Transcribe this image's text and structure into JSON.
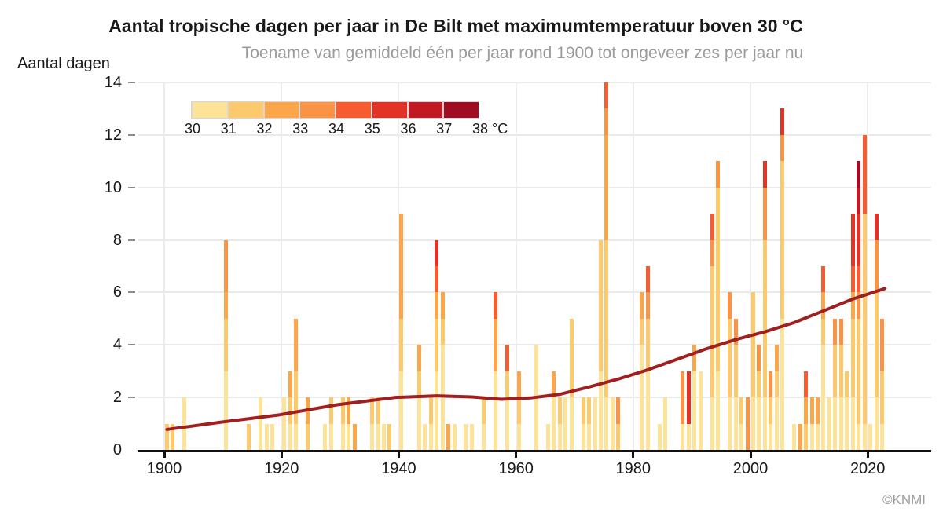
{
  "title": "Aantal tropische dagen per jaar in De Bilt met maximumtemperatuur boven 30 °C",
  "subtitle": "Toename van gemiddeld één per jaar rond 1900 tot ongeveer zes per jaar nu",
  "credit": "©KNMI",
  "y_axis": {
    "label": "Aantal dagen",
    "ticks": [
      0,
      2,
      4,
      6,
      8,
      10,
      12,
      14
    ]
  },
  "x_axis": {
    "ticks": [
      1900,
      1920,
      1940,
      1960,
      1980,
      2000,
      2020
    ]
  },
  "legend": {
    "labels": [
      "30",
      "31",
      "32",
      "33",
      "34",
      "35",
      "36",
      "37",
      "38"
    ],
    "unit": "°C",
    "swatch_colors": [
      "#FDE398",
      "#FDC96D",
      "#FCA64B",
      "#F99345",
      "#F75C30",
      "#E23327",
      "#C11A23",
      "#A00D22"
    ]
  },
  "chart_data": {
    "type": "bar",
    "stacked": true,
    "title": "Aantal tropische dagen per jaar in De Bilt met maximumtemperatuur boven 30 °C",
    "ylabel": "Aantal dagen",
    "ylim": [
      0,
      14
    ],
    "xlim": [
      1896,
      2028
    ],
    "grid": true,
    "temperature_bins": [
      "30-31",
      "31-32",
      "32-33",
      "33-34",
      "34-35",
      "35-36",
      "36-37",
      "37-38"
    ],
    "bin_colors": [
      "#FDE398",
      "#FDC96D",
      "#FCA64B",
      "#F99345",
      "#F75C30",
      "#E23327",
      "#C11A23",
      "#A00D22"
    ],
    "bars": [
      {
        "year": 1901,
        "segments": [
          0,
          1
        ]
      },
      {
        "year": 1902,
        "segments": [
          0,
          1
        ]
      },
      {
        "year": 1904,
        "segments": [
          2
        ]
      },
      {
        "year": 1911,
        "segments": [
          3,
          2,
          1,
          2
        ]
      },
      {
        "year": 1915,
        "segments": [
          0,
          1
        ]
      },
      {
        "year": 1917,
        "segments": [
          2
        ]
      },
      {
        "year": 1918,
        "segments": [
          1
        ]
      },
      {
        "year": 1919,
        "segments": [
          1
        ]
      },
      {
        "year": 1921,
        "segments": [
          2
        ]
      },
      {
        "year": 1922,
        "segments": [
          1,
          1,
          1
        ]
      },
      {
        "year": 1923,
        "segments": [
          1,
          2,
          2
        ]
      },
      {
        "year": 1925,
        "segments": [
          0,
          1,
          1
        ]
      },
      {
        "year": 1928,
        "segments": [
          1
        ]
      },
      {
        "year": 1929,
        "segments": [
          1,
          1
        ]
      },
      {
        "year": 1931,
        "segments": [
          1,
          1
        ]
      },
      {
        "year": 1932,
        "segments": [
          1,
          0,
          1
        ]
      },
      {
        "year": 1933,
        "segments": [
          0,
          0,
          1
        ]
      },
      {
        "year": 1936,
        "segments": [
          1,
          1
        ]
      },
      {
        "year": 1937,
        "segments": [
          1,
          1
        ]
      },
      {
        "year": 1938,
        "segments": [
          1
        ]
      },
      {
        "year": 1939,
        "segments": [
          0,
          1
        ]
      },
      {
        "year": 1941,
        "segments": [
          3,
          2,
          4
        ]
      },
      {
        "year": 1944,
        "segments": [
          2,
          1,
          1
        ]
      },
      {
        "year": 1945,
        "segments": [
          1
        ]
      },
      {
        "year": 1946,
        "segments": [
          1,
          1
        ]
      },
      {
        "year": 1947,
        "segments": [
          3,
          2,
          1,
          0,
          1,
          1
        ]
      },
      {
        "year": 1948,
        "segments": [
          4,
          1,
          1
        ]
      },
      {
        "year": 1949,
        "segments": [
          0,
          0,
          1
        ]
      },
      {
        "year": 1950,
        "segments": [
          1
        ]
      },
      {
        "year": 1952,
        "segments": [
          1
        ]
      },
      {
        "year": 1953,
        "segments": [
          1
        ]
      },
      {
        "year": 1955,
        "segments": [
          1,
          1
        ]
      },
      {
        "year": 1957,
        "segments": [
          3,
          0,
          2,
          0,
          1
        ]
      },
      {
        "year": 1959,
        "segments": [
          2,
          1,
          0,
          0,
          1
        ]
      },
      {
        "year": 1961,
        "segments": [
          1,
          1,
          1
        ]
      },
      {
        "year": 1964,
        "segments": [
          4
        ]
      },
      {
        "year": 1966,
        "segments": [
          1
        ]
      },
      {
        "year": 1967,
        "segments": [
          2,
          0,
          1
        ]
      },
      {
        "year": 1968,
        "segments": [
          1,
          1
        ]
      },
      {
        "year": 1969,
        "segments": [
          2
        ]
      },
      {
        "year": 1970,
        "segments": [
          2,
          3
        ]
      },
      {
        "year": 1972,
        "segments": [
          1,
          1
        ]
      },
      {
        "year": 1973,
        "segments": [
          1,
          1
        ]
      },
      {
        "year": 1974,
        "segments": [
          2
        ]
      },
      {
        "year": 1975,
        "segments": [
          3,
          5
        ]
      },
      {
        "year": 1976,
        "segments": [
          2,
          6,
          4,
          1,
          1
        ]
      },
      {
        "year": 1977,
        "segments": [
          2
        ]
      },
      {
        "year": 1978,
        "segments": [
          0,
          1,
          0,
          1
        ]
      },
      {
        "year": 1982,
        "segments": [
          4,
          1,
          1
        ]
      },
      {
        "year": 1983,
        "segments": [
          3,
          2,
          0,
          1,
          1
        ]
      },
      {
        "year": 1985,
        "segments": [
          1
        ]
      },
      {
        "year": 1986,
        "segments": [
          2
        ]
      },
      {
        "year": 1989,
        "segments": [
          1,
          0,
          0,
          2
        ]
      },
      {
        "year": 1990,
        "segments": [
          1,
          0,
          0,
          0,
          0,
          2
        ]
      },
      {
        "year": 1991,
        "segments": [
          3,
          0,
          1
        ]
      },
      {
        "year": 1992,
        "segments": [
          3
        ]
      },
      {
        "year": 1994,
        "segments": [
          2,
          5,
          0,
          1,
          1
        ]
      },
      {
        "year": 1995,
        "segments": [
          3,
          7,
          0,
          1
        ]
      },
      {
        "year": 1997,
        "segments": [
          2,
          3,
          0,
          1
        ]
      },
      {
        "year": 1998,
        "segments": [
          2,
          2,
          0,
          1
        ]
      },
      {
        "year": 1999,
        "segments": [
          1,
          1
        ]
      },
      {
        "year": 2000,
        "segments": [
          0,
          0,
          0,
          2
        ]
      },
      {
        "year": 2001,
        "segments": [
          2,
          4
        ]
      },
      {
        "year": 2002,
        "segments": [
          2,
          1,
          0,
          1
        ]
      },
      {
        "year": 2003,
        "segments": [
          2,
          6,
          0,
          2,
          0,
          1
        ]
      },
      {
        "year": 2004,
        "segments": [
          1,
          1,
          0,
          1
        ]
      },
      {
        "year": 2005,
        "segments": [
          2,
          1,
          1
        ]
      },
      {
        "year": 2006,
        "segments": [
          5,
          6,
          0,
          1,
          0,
          1
        ]
      },
      {
        "year": 2008,
        "segments": [
          1
        ]
      },
      {
        "year": 2009,
        "segments": [
          0,
          0,
          1
        ]
      },
      {
        "year": 2010,
        "segments": [
          0,
          1,
          1,
          0,
          1
        ]
      },
      {
        "year": 2011,
        "segments": [
          1,
          0,
          1
        ]
      },
      {
        "year": 2012,
        "segments": [
          1,
          0,
          1
        ]
      },
      {
        "year": 2013,
        "segments": [
          4,
          1,
          1,
          0,
          1
        ]
      },
      {
        "year": 2014,
        "segments": [
          2
        ]
      },
      {
        "year": 2015,
        "segments": [
          2,
          2,
          0,
          1
        ]
      },
      {
        "year": 2016,
        "segments": [
          2,
          2,
          0,
          1
        ]
      },
      {
        "year": 2017,
        "segments": [
          2,
          1
        ]
      },
      {
        "year": 2018,
        "segments": [
          2,
          3,
          1,
          0,
          1,
          2
        ]
      },
      {
        "year": 2019,
        "segments": [
          1,
          4,
          0,
          1,
          1,
          2,
          1,
          1
        ]
      },
      {
        "year": 2020,
        "segments": [
          1,
          8,
          0,
          0,
          3
        ]
      },
      {
        "year": 2021,
        "segments": [
          1
        ]
      },
      {
        "year": 2022,
        "segments": [
          2,
          4,
          0,
          2,
          0,
          1
        ]
      },
      {
        "year": 2023,
        "segments": [
          1,
          2,
          0,
          2
        ]
      }
    ],
    "trend": {
      "description": "smoothed average number of tropical days per year",
      "color": "#A02020",
      "points": [
        [
          1901,
          0.78
        ],
        [
          1910,
          1.05
        ],
        [
          1920,
          1.33
        ],
        [
          1930,
          1.72
        ],
        [
          1940,
          2.0
        ],
        [
          1947,
          2.06
        ],
        [
          1953,
          2.02
        ],
        [
          1958,
          1.93
        ],
        [
          1963,
          1.98
        ],
        [
          1968,
          2.12
        ],
        [
          1973,
          2.4
        ],
        [
          1978,
          2.7
        ],
        [
          1983,
          3.05
        ],
        [
          1988,
          3.45
        ],
        [
          1993,
          3.85
        ],
        [
          1998,
          4.2
        ],
        [
          2003,
          4.5
        ],
        [
          2008,
          4.85
        ],
        [
          2013,
          5.3
        ],
        [
          2018,
          5.75
        ],
        [
          2023.5,
          6.15
        ]
      ]
    }
  }
}
